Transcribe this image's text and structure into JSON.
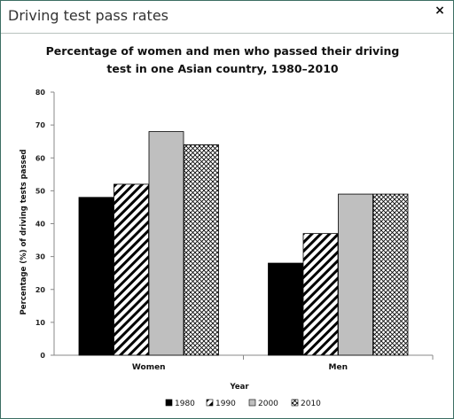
{
  "window": {
    "title": "Driving test pass rates",
    "close_label": "×"
  },
  "chart_data": {
    "type": "bar",
    "title_lines": [
      "Percentage of women and men who passed their driving",
      "test in one Asian country, 1980–2010"
    ],
    "xlabel": "Year",
    "ylabel": "Percentage (%) of driving tests passed",
    "categories": [
      "Women",
      "Men"
    ],
    "ylim": [
      0,
      80
    ],
    "yticks": [
      0,
      10,
      20,
      30,
      40,
      50,
      60,
      70,
      80
    ],
    "grid": false,
    "legend_position": "bottom",
    "series": [
      {
        "name": "1980",
        "values": [
          48,
          28
        ],
        "fill": "solid-black"
      },
      {
        "name": "1990",
        "values": [
          52,
          37
        ],
        "fill": "diagonal-hatch"
      },
      {
        "name": "2000",
        "values": [
          68,
          49
        ],
        "fill": "solid-grey"
      },
      {
        "name": "2010",
        "values": [
          64,
          49
        ],
        "fill": "crosshatch"
      }
    ],
    "colors": {
      "solid_black": "#000000",
      "solid_grey": "#bfbfbf",
      "hatch_line": "#000000"
    }
  }
}
